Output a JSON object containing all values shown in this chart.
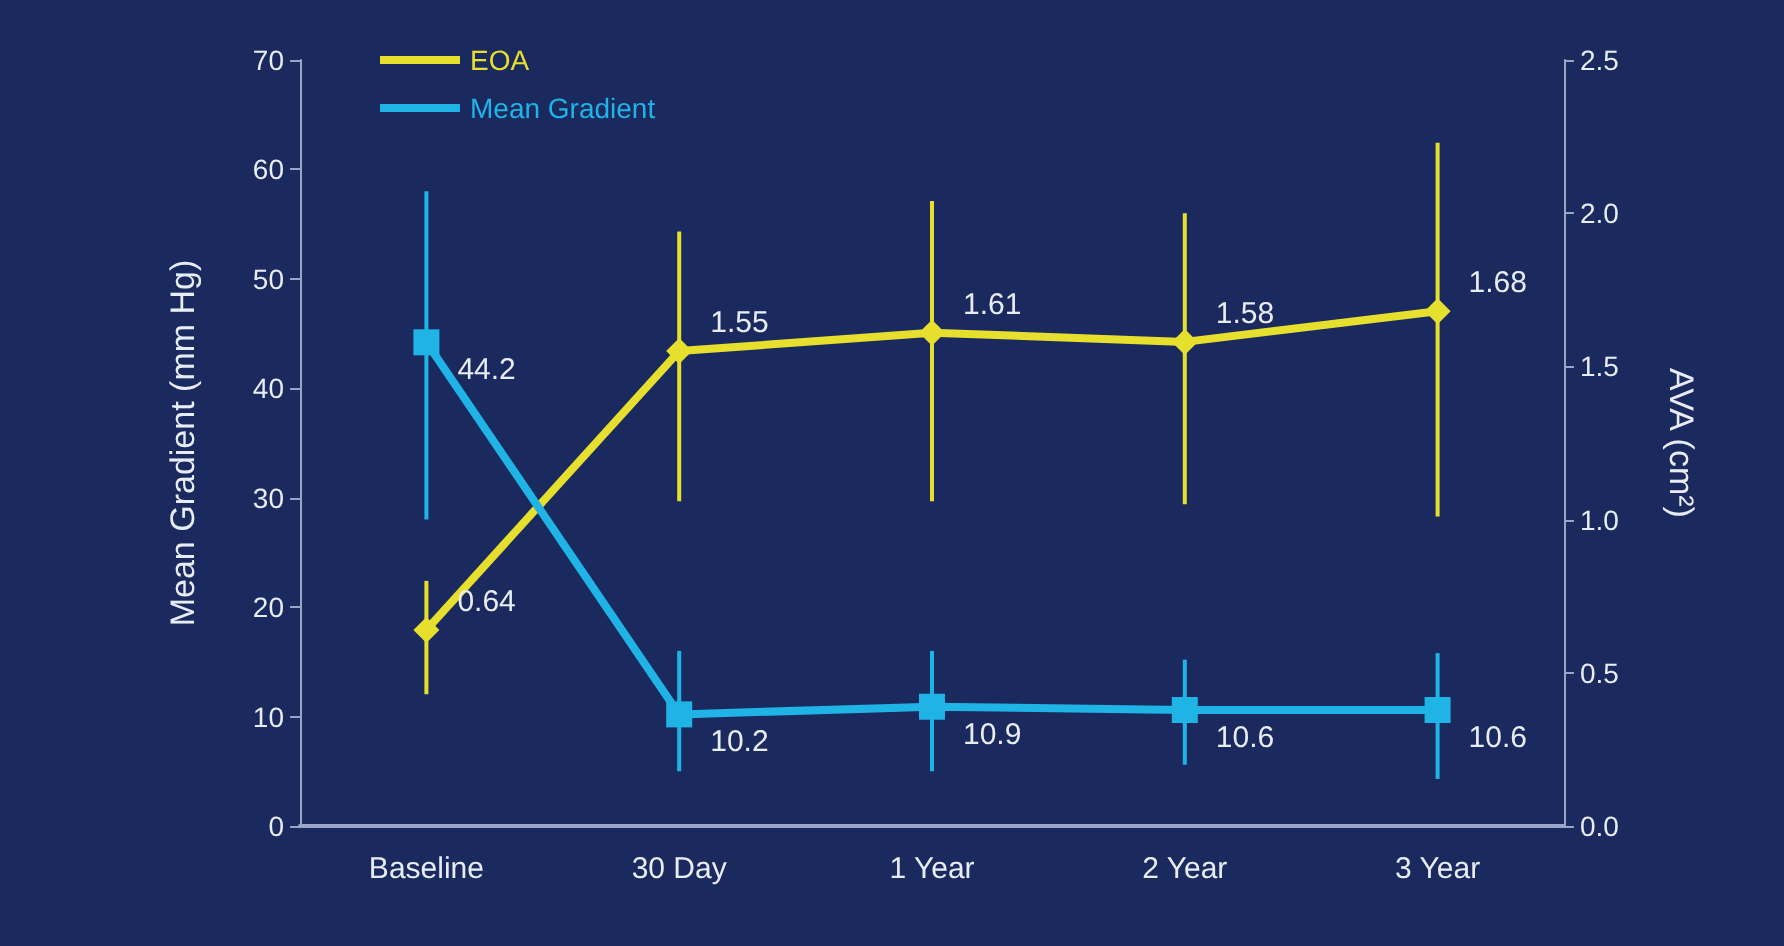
{
  "chart_data": {
    "type": "line",
    "xlabel": null,
    "ylabel": "Mean Gradient (mm Hg)",
    "y2label": "AVA (cm²)",
    "categories": [
      "Baseline",
      "30 Day",
      "1 Year",
      "2 Year",
      "3 Year"
    ],
    "series": [
      {
        "name": "EOA",
        "color": "#e6df2e",
        "axis": "y2",
        "marker": "diamond",
        "values": [
          0.64,
          1.55,
          1.61,
          1.58,
          1.68
        ],
        "errors": [
          [
            0.43,
            0.8
          ],
          [
            1.06,
            1.94
          ],
          [
            1.06,
            2.04
          ],
          [
            1.05,
            2.0
          ],
          [
            1.01,
            2.23
          ]
        ]
      },
      {
        "name": "Mean Gradient",
        "color": "#1fb3e6",
        "axis": "y",
        "marker": "square",
        "values": [
          44.2,
          10.2,
          10.9,
          10.6,
          10.6
        ],
        "errors": [
          [
            28,
            58
          ],
          [
            5,
            16
          ],
          [
            5,
            16
          ],
          [
            5.6,
            15.2
          ],
          [
            4.3,
            15.8
          ]
        ]
      }
    ],
    "ylim": [
      0,
      70
    ],
    "yticks": [
      0,
      10,
      20,
      30,
      40,
      50,
      60,
      70
    ],
    "y2lim": [
      0,
      2.5
    ],
    "y2ticks": [
      {
        "value": 0,
        "label": "0.0"
      },
      0.5,
      {
        "value": 1,
        "label": "1.0"
      },
      1.5,
      {
        "value": 2,
        "label": "2.0"
      },
      2.5
    ],
    "grid": false,
    "legend": "top left",
    "data_labels": true,
    "line_style": "solid"
  }
}
